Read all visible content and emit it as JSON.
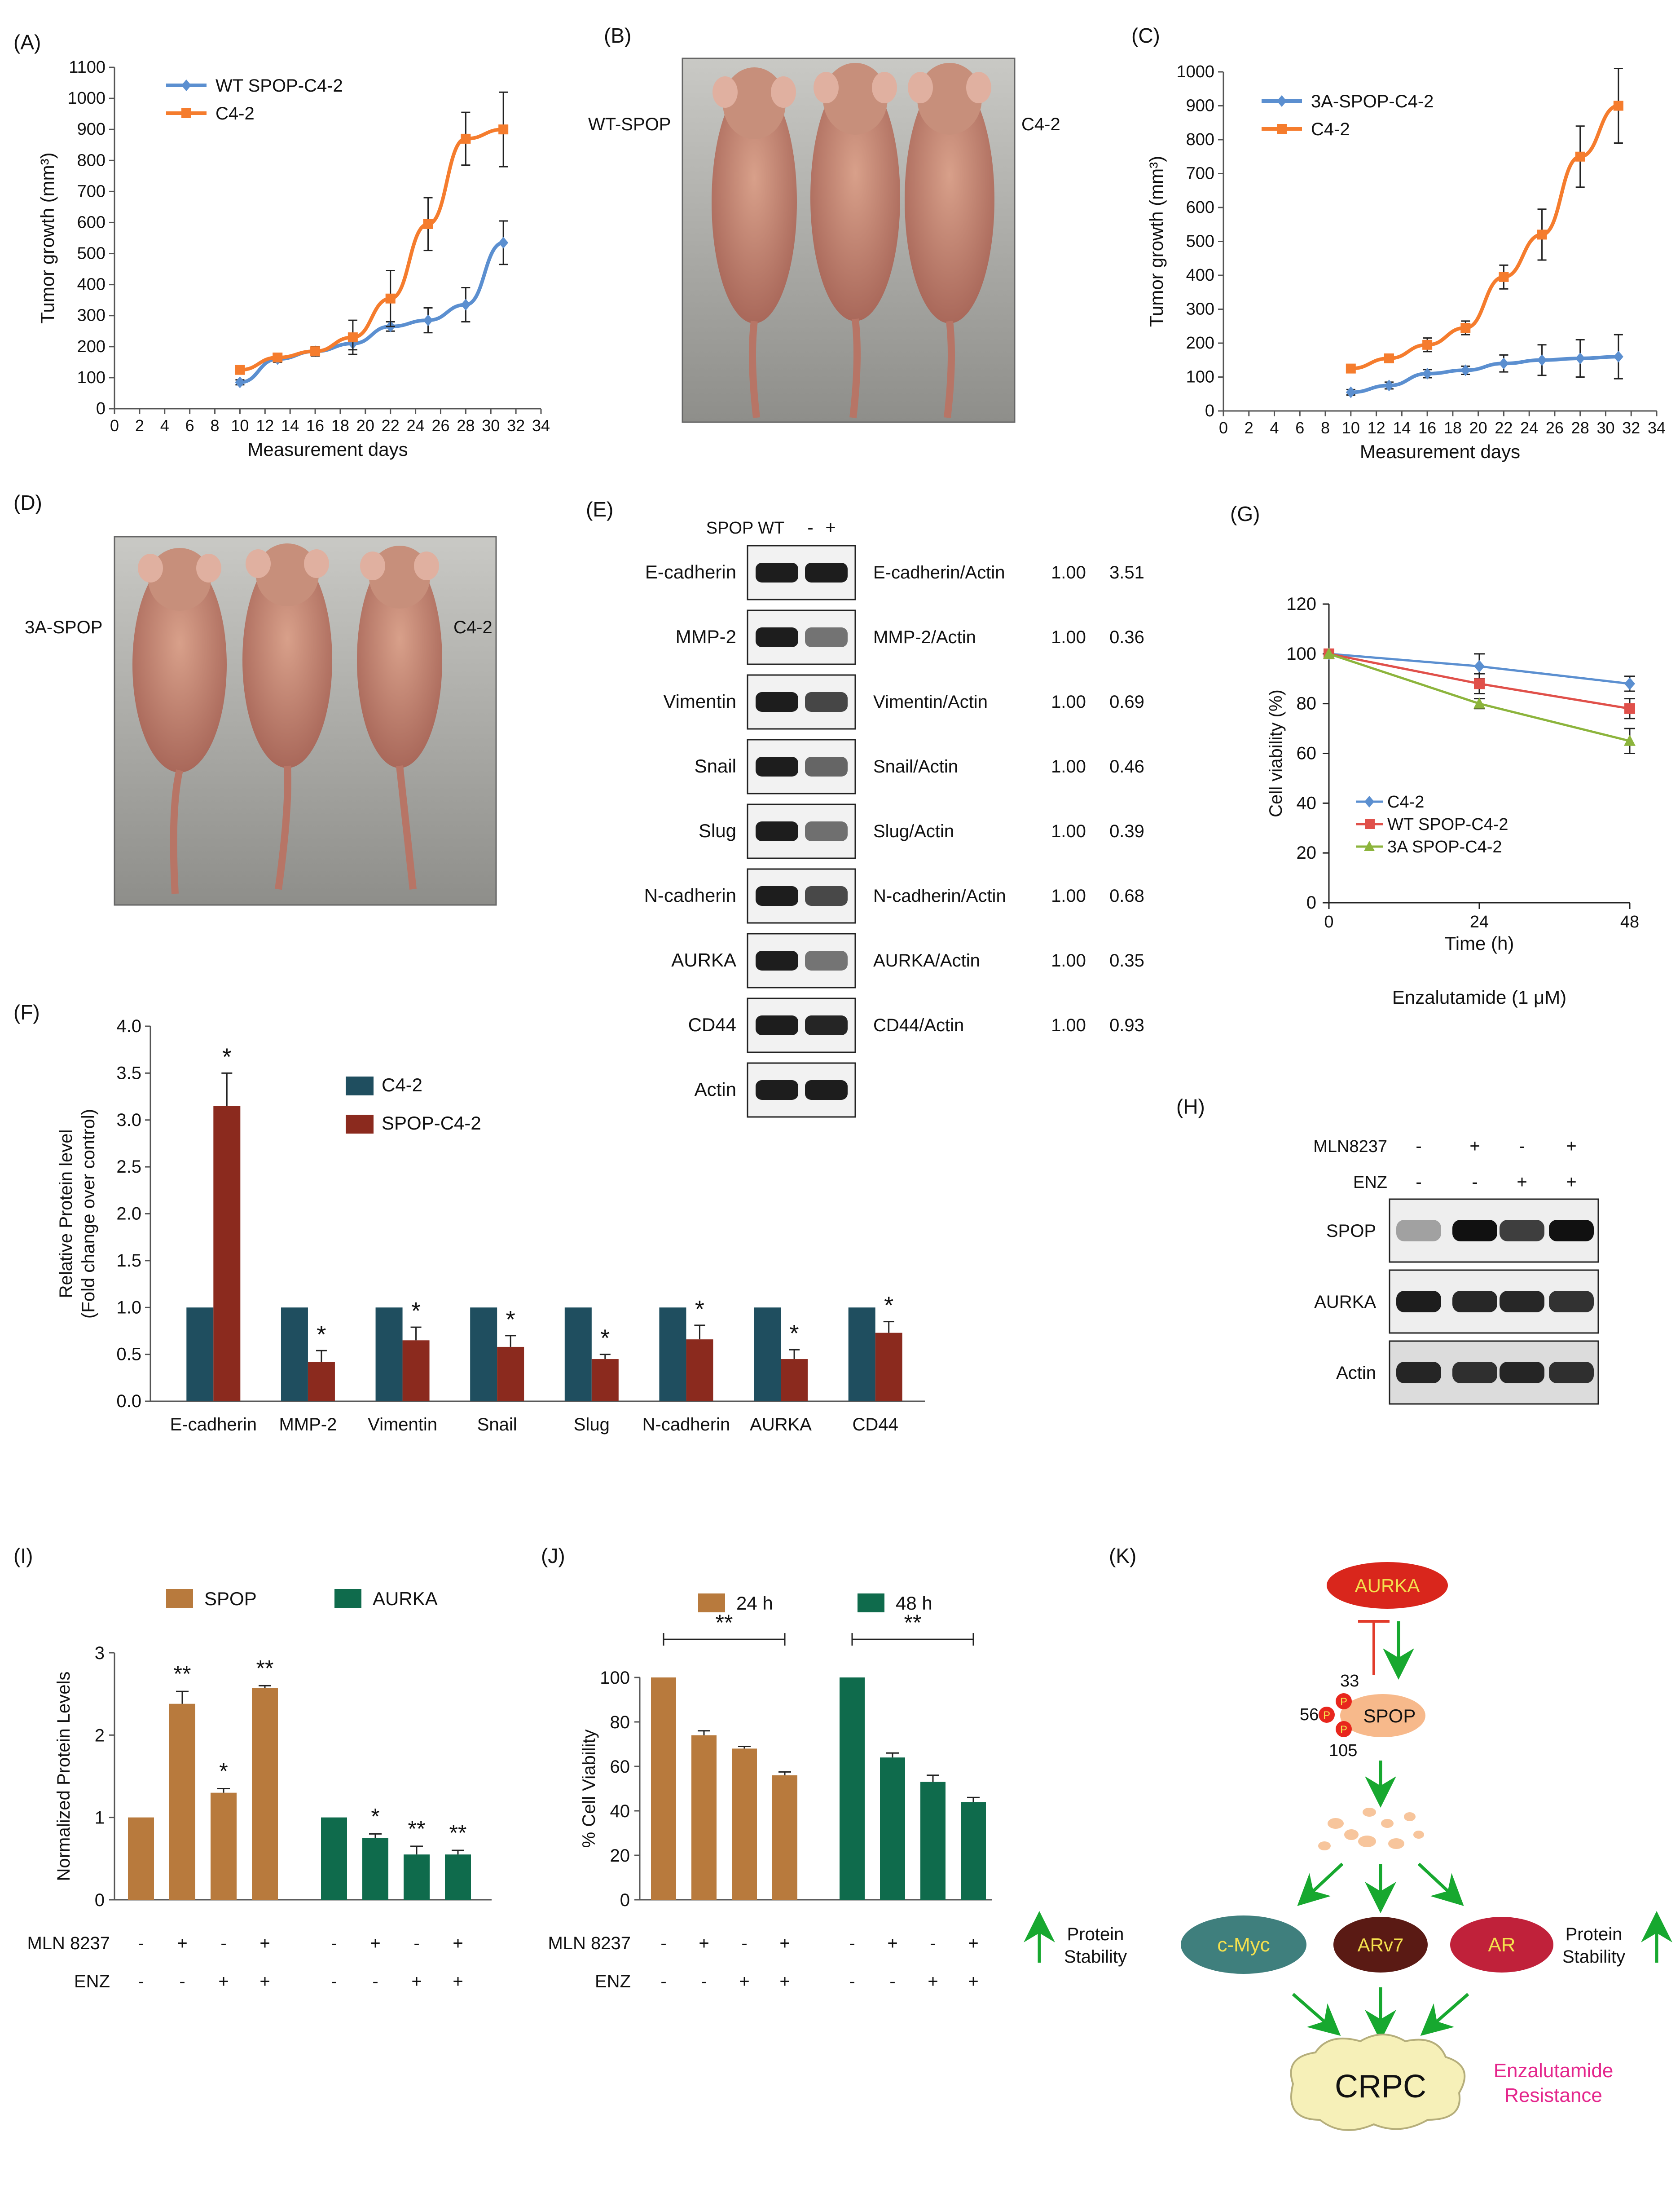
{
  "panel_letters": {
    "A": "(A)",
    "B": "(B)",
    "C": "(C)",
    "D": "(D)",
    "E": "(E)",
    "F": "(F)",
    "G": "(G)",
    "H": "(H)",
    "I": "(I)",
    "J": "(J)",
    "K": "(K)"
  },
  "colors": {
    "blue": "#5b8fd0",
    "orange": "#f57c2d",
    "red": "#e0504a",
    "green": "#8cb43c",
    "teal": "#1f4e5f",
    "darkred": "#8b2a1e",
    "brown": "#b87a3d",
    "darkgreen": "#0f6b4c",
    "aurka": "#d9261c",
    "cmyc": "#3f7f7d",
    "arv7": "#5a1a14",
    "ar": "#c0213a",
    "crpc": "#f6f0b8",
    "spop": "#f7b98b",
    "magenta": "#e4268c",
    "arrow": "#17a82f"
  },
  "photos": {
    "B": {
      "left_label": "WT-SPOP",
      "right_label": "C4-2"
    },
    "D": {
      "left_label": "3A-SPOP",
      "right_label": "C4-2"
    }
  },
  "panelE": {
    "header": "SPOP WT",
    "minus": "-",
    "plus": "+",
    "rows": [
      {
        "protein": "E-cadherin",
        "ratio": "E-cadherin/Actin",
        "v1": "1.00",
        "v2": "3.51"
      },
      {
        "protein": "MMP-2",
        "ratio": "MMP-2/Actin",
        "v1": "1.00",
        "v2": "0.36"
      },
      {
        "protein": "Vimentin",
        "ratio": "Vimentin/Actin",
        "v1": "1.00",
        "v2": "0.69"
      },
      {
        "protein": "Snail",
        "ratio": "Snail/Actin",
        "v1": "1.00",
        "v2": "0.46"
      },
      {
        "protein": "Slug",
        "ratio": "Slug/Actin",
        "v1": "1.00",
        "v2": "0.39"
      },
      {
        "protein": "N-cadherin",
        "ratio": "N-cadherin/Actin",
        "v1": "1.00",
        "v2": "0.68"
      },
      {
        "protein": "AURKA",
        "ratio": "AURKA/Actin",
        "v1": "1.00",
        "v2": "0.35"
      },
      {
        "protein": "CD44",
        "ratio": "CD44/Actin",
        "v1": "1.00",
        "v2": "0.93"
      },
      {
        "protein": "Actin",
        "ratio": "",
        "v1": "",
        "v2": ""
      }
    ]
  },
  "panelH": {
    "rows": [
      "MLN8237",
      "ENZ"
    ],
    "mln": [
      "-",
      "+",
      "-",
      "+"
    ],
    "enz": [
      "-",
      "-",
      "+",
      "+"
    ],
    "blots": [
      "SPOP",
      "AURKA",
      "Actin"
    ]
  },
  "panelK": {
    "aurka": "AURKA",
    "spop": "SPOP",
    "p": "P",
    "sites": [
      "33",
      "56",
      "105"
    ],
    "cmyc": "c-Myc",
    "arv7": "ARv7",
    "ar": "AR",
    "stab_left_1": "Protein",
    "stab_left_2": "Stability",
    "stab_right_1": "Protein",
    "stab_right_2": "Stability",
    "crpc": "CRPC",
    "res1": "Enzalutamide",
    "res2": "Resistance"
  },
  "chart_data": [
    {
      "id": "A",
      "type": "line",
      "ylabel": "Tumor growth (mm³)",
      "xlabel": "Measurement days",
      "xlim": [
        0,
        34
      ],
      "xticks": [
        0,
        2,
        4,
        6,
        8,
        10,
        12,
        14,
        16,
        18,
        20,
        22,
        24,
        26,
        28,
        30,
        32,
        34
      ],
      "ylim": [
        0,
        1100
      ],
      "yticks": [
        0,
        100,
        200,
        300,
        400,
        500,
        600,
        700,
        800,
        900,
        1000,
        1100
      ],
      "series": [
        {
          "name": "WT SPOP-C4-2",
          "color": "blue",
          "x": [
            10,
            13,
            16,
            19,
            22,
            25,
            28,
            31
          ],
          "y": [
            85,
            160,
            185,
            210,
            265,
            285,
            335,
            535
          ],
          "err": [
            8,
            10,
            12,
            20,
            15,
            40,
            55,
            70
          ]
        },
        {
          "name": "C4-2",
          "color": "orange",
          "x": [
            10,
            13,
            16,
            19,
            22,
            25,
            28,
            31
          ],
          "y": [
            125,
            165,
            185,
            230,
            355,
            595,
            870,
            900
          ],
          "err": [
            10,
            10,
            15,
            55,
            90,
            85,
            85,
            120
          ]
        }
      ]
    },
    {
      "id": "C",
      "type": "line",
      "ylabel": "Tumor growth (mm³)",
      "xlabel": "Measurement days",
      "xlim": [
        0,
        34
      ],
      "xticks": [
        0,
        2,
        4,
        6,
        8,
        10,
        12,
        14,
        16,
        18,
        20,
        22,
        24,
        26,
        28,
        30,
        32,
        34
      ],
      "ylim": [
        0,
        1000
      ],
      "yticks": [
        0,
        100,
        200,
        300,
        400,
        500,
        600,
        700,
        800,
        900,
        1000
      ],
      "series": [
        {
          "name": "3A-SPOP-C4-2",
          "color": "blue",
          "x": [
            10,
            13,
            16,
            19,
            22,
            25,
            28,
            31
          ],
          "y": [
            55,
            75,
            110,
            120,
            140,
            150,
            155,
            160
          ],
          "err": [
            8,
            10,
            12,
            12,
            25,
            45,
            55,
            65
          ]
        },
        {
          "name": "C4-2",
          "color": "orange",
          "x": [
            10,
            13,
            16,
            19,
            22,
            25,
            28,
            31
          ],
          "y": [
            125,
            155,
            195,
            245,
            395,
            520,
            750,
            900
          ],
          "err": [
            10,
            12,
            20,
            20,
            35,
            75,
            90,
            110
          ]
        }
      ]
    },
    {
      "id": "G",
      "type": "line",
      "ylabel": "Cell viability (%)",
      "xlabel": "Time (h)",
      "note": "Enzalutamide (1 μM)",
      "x": [
        0,
        24,
        48
      ],
      "ylim": [
        0,
        120
      ],
      "yticks": [
        0,
        20,
        40,
        60,
        80,
        100,
        120
      ],
      "series": [
        {
          "name": "C4-2",
          "color": "blue",
          "marker": "diamond",
          "y": [
            100,
            95,
            88
          ],
          "err": [
            0,
            5,
            3
          ]
        },
        {
          "name": "WT SPOP-C4-2",
          "color": "red",
          "marker": "square",
          "y": [
            100,
            88,
            78
          ],
          "err": [
            0,
            4,
            4
          ]
        },
        {
          "name": "3A SPOP-C4-2",
          "color": "green",
          "marker": "triangle",
          "y": [
            100,
            80,
            65
          ],
          "err": [
            0,
            2,
            5
          ]
        }
      ]
    },
    {
      "id": "F",
      "type": "bar",
      "ylabel": "Relative Protein level",
      "ylabel2": "(Fold change over control)",
      "categories": [
        "E-cadherin",
        "MMP-2",
        "Vimentin",
        "Snail",
        "Slug",
        "N-cadherin",
        "AURKA",
        "CD44"
      ],
      "ylim": [
        0,
        4.0
      ],
      "yticks": [
        "0.0",
        "0.5",
        "1.0",
        "1.5",
        "2.0",
        "2.5",
        "3.0",
        "3.5",
        "4.0"
      ],
      "series": [
        {
          "name": "C4-2",
          "color": "teal",
          "values": [
            1,
            1,
            1,
            1,
            1,
            1,
            1,
            1
          ],
          "err": [
            0,
            0,
            0,
            0,
            0,
            0,
            0,
            0
          ]
        },
        {
          "name": "SPOP-C4-2",
          "color": "darkred",
          "values": [
            3.15,
            0.42,
            0.65,
            0.58,
            0.45,
            0.66,
            0.45,
            0.73
          ],
          "err": [
            0.35,
            0.12,
            0.14,
            0.12,
            0.05,
            0.15,
            0.1,
            0.12
          ]
        }
      ],
      "sig": [
        "*",
        "*",
        "*",
        "*",
        "*",
        "*",
        "*",
        "*"
      ]
    },
    {
      "id": "I",
      "type": "bar",
      "ylabel": "Normalized Protein Levels",
      "ylim": [
        0,
        3
      ],
      "yticks": [
        "0",
        "1",
        "2",
        "3"
      ],
      "series": [
        {
          "name": "SPOP",
          "color": "brown",
          "values": [
            1.0,
            2.38,
            1.3,
            2.57
          ],
          "err": [
            0,
            0.15,
            0.05,
            0.03
          ],
          "sig": [
            "",
            "**",
            "*",
            "**"
          ]
        },
        {
          "name": "AURKA",
          "color": "darkgreen",
          "values": [
            1.0,
            0.75,
            0.55,
            0.55
          ],
          "err": [
            0,
            0.05,
            0.1,
            0.05
          ],
          "sig": [
            "",
            "*",
            "**",
            "**"
          ]
        }
      ],
      "row_labels": [
        "MLN 8237",
        "ENZ"
      ],
      "mln": [
        "-",
        "+",
        "-",
        "+",
        "-",
        "+",
        "-",
        "+"
      ],
      "enz": [
        "-",
        "-",
        "+",
        "+",
        "-",
        "-",
        "+",
        "+"
      ]
    },
    {
      "id": "J",
      "type": "bar",
      "ylabel": "% Cell Viability",
      "ylim": [
        0,
        100
      ],
      "yticks": [
        "0",
        "20",
        "40",
        "60",
        "80",
        "100"
      ],
      "series": [
        {
          "name": "24 h",
          "color": "brown",
          "values": [
            100,
            74,
            68,
            56
          ],
          "err": [
            0,
            2,
            1,
            1.5
          ]
        },
        {
          "name": "48 h",
          "color": "darkgreen",
          "values": [
            100,
            64,
            53,
            44
          ],
          "err": [
            0,
            2,
            3,
            2
          ]
        }
      ],
      "sig": "**",
      "row_labels": [
        "MLN 8237",
        "ENZ"
      ],
      "mln": [
        "-",
        "+",
        "-",
        "+",
        "-",
        "+",
        "-",
        "+"
      ],
      "enz": [
        "-",
        "-",
        "+",
        "+",
        "-",
        "-",
        "+",
        "+"
      ]
    }
  ]
}
